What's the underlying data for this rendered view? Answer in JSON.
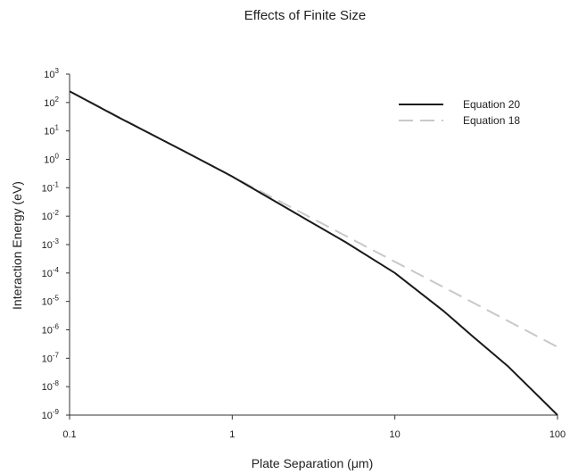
{
  "chart_data": {
    "type": "line",
    "title": "Effects of Finite Size",
    "xlabel": "Plate Separation (μm)",
    "ylabel": "Interaction Energy (eV)",
    "x_scale": "log",
    "y_scale": "log",
    "xlim": [
      0.1,
      100
    ],
    "ylim": [
      1e-09,
      1000
    ],
    "x_ticks": [
      {
        "value": 0.1,
        "label": "0.1"
      },
      {
        "value": 1,
        "label": "1"
      },
      {
        "value": 10,
        "label": "10"
      },
      {
        "value": 100,
        "label": "100"
      }
    ],
    "y_ticks": [
      {
        "value": 1000,
        "base": "10",
        "exp": "3"
      },
      {
        "value": 100,
        "base": "10",
        "exp": "2"
      },
      {
        "value": 10,
        "base": "10",
        "exp": "1"
      },
      {
        "value": 1,
        "base": "10",
        "exp": "0"
      },
      {
        "value": 0.1,
        "base": "10",
        "exp": "-1"
      },
      {
        "value": 0.01,
        "base": "10",
        "exp": "-2"
      },
      {
        "value": 0.001,
        "base": "10",
        "exp": "-3"
      },
      {
        "value": 0.0001,
        "base": "10",
        "exp": "-4"
      },
      {
        "value": 1e-05,
        "base": "10",
        "exp": "-5"
      },
      {
        "value": 1e-06,
        "base": "10",
        "exp": "-6"
      },
      {
        "value": 1e-07,
        "base": "10",
        "exp": "-7"
      },
      {
        "value": 1e-08,
        "base": "10",
        "exp": "-8"
      },
      {
        "value": 1e-09,
        "base": "10",
        "exp": "-9"
      }
    ],
    "grid": false,
    "legend_position": "top-right",
    "series": [
      {
        "name": "Equation 20",
        "color": "#1a1a1a",
        "dash": "solid",
        "x": [
          0.1,
          0.2,
          0.5,
          1,
          2,
          3,
          5,
          10,
          20,
          30,
          50,
          100
        ],
        "y": [
          250,
          30,
          2,
          0.25,
          0.025,
          0.0065,
          0.0012,
          0.0001,
          4.5e-06,
          6e-07,
          5e-08,
          1e-09
        ]
      },
      {
        "name": "Equation 18",
        "color": "#c8c8c8",
        "dash": "dashed",
        "x": [
          0.1,
          0.2,
          0.5,
          1,
          2,
          5,
          10,
          20,
          50,
          100
        ],
        "y": [
          250,
          31.25,
          2,
          0.25,
          0.03125,
          0.002,
          0.00025,
          3.125e-05,
          2e-06,
          2.5e-07
        ]
      }
    ]
  }
}
